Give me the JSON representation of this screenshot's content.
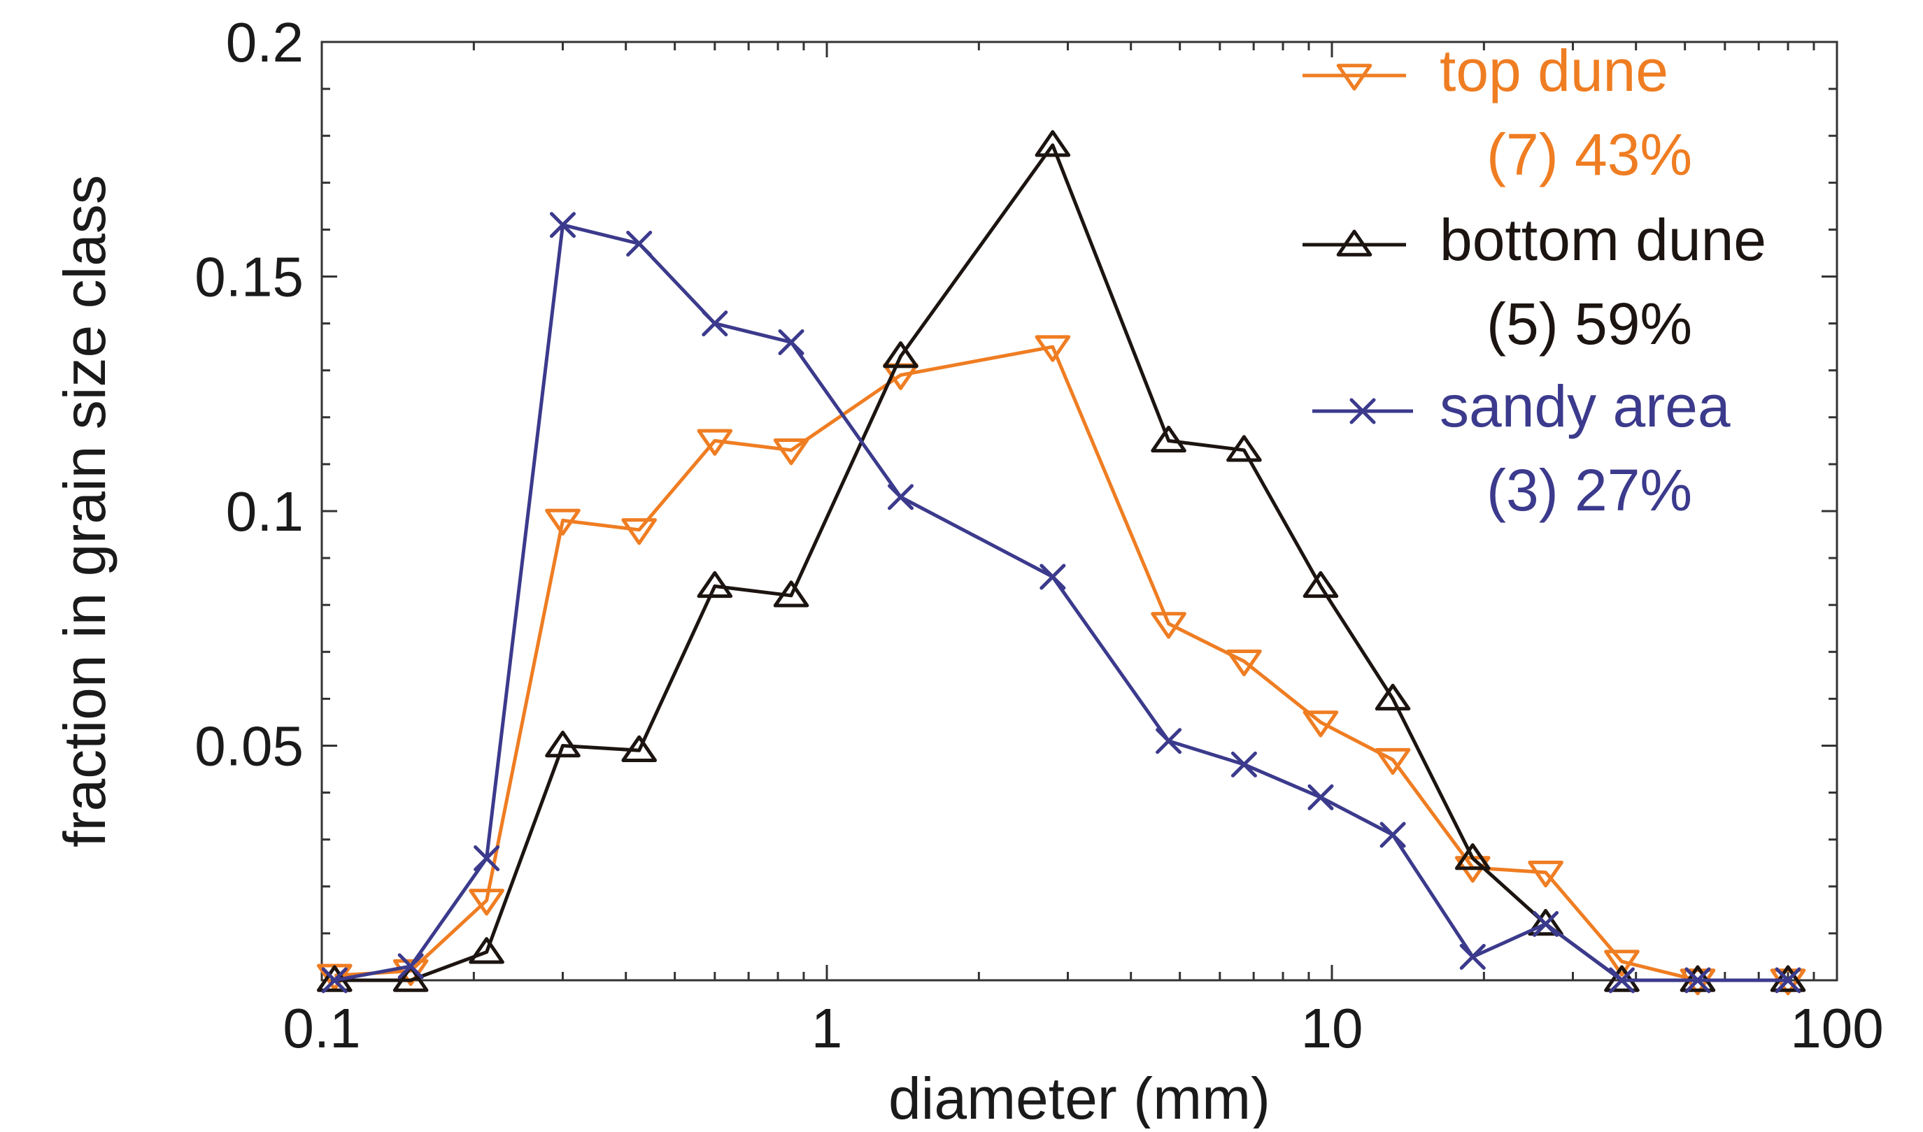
{
  "chart_data": {
    "type": "line",
    "xlabel": "diameter (mm)",
    "ylabel": "fraction in grain size class",
    "xscale": "log",
    "xlim": [
      0.1,
      100
    ],
    "ylim": [
      0,
      0.2
    ],
    "x_ticks": [
      0.1,
      1,
      10,
      100
    ],
    "x_tick_labels": [
      "0.1",
      "1",
      "10",
      "100"
    ],
    "y_ticks": [
      0.05,
      0.1,
      0.15,
      0.2
    ],
    "y_tick_labels": [
      "0.05",
      "0.1",
      "0.15",
      "0.2"
    ],
    "grid": false,
    "legend_position": "top-right",
    "x": [
      0.106,
      0.15,
      0.212,
      0.3,
      0.425,
      0.6,
      0.85,
      1.4,
      2.8,
      4.75,
      6.7,
      9.5,
      13.2,
      19,
      26.5,
      37.5,
      53,
      80
    ],
    "series": [
      {
        "name": "top dune",
        "note": "(7) 43%",
        "color": "#ef7d22",
        "marker": "triangle-down",
        "values": [
          0.001,
          0.002,
          0.017,
          0.098,
          0.096,
          0.115,
          0.113,
          0.129,
          0.135,
          0.076,
          0.068,
          0.055,
          0.047,
          0.024,
          0.023,
          0.004,
          0.0,
          0.0
        ]
      },
      {
        "name": "bottom dune",
        "note": "(5) 59%",
        "color": "#1c1410",
        "marker": "triangle-up",
        "values": [
          0.0,
          0.0,
          0.006,
          0.05,
          0.049,
          0.084,
          0.082,
          0.133,
          0.178,
          0.115,
          0.113,
          0.084,
          0.06,
          0.026,
          0.012,
          0.0,
          0.0,
          0.0
        ]
      },
      {
        "name": "sandy area",
        "note": "(3) 27%",
        "color": "#3b3a8c",
        "marker": "x",
        "values": [
          0.0,
          0.003,
          0.026,
          0.161,
          0.157,
          0.14,
          0.136,
          0.103,
          0.086,
          0.051,
          0.046,
          0.039,
          0.031,
          0.005,
          0.012,
          0.0,
          0.0,
          0.0
        ]
      }
    ]
  }
}
